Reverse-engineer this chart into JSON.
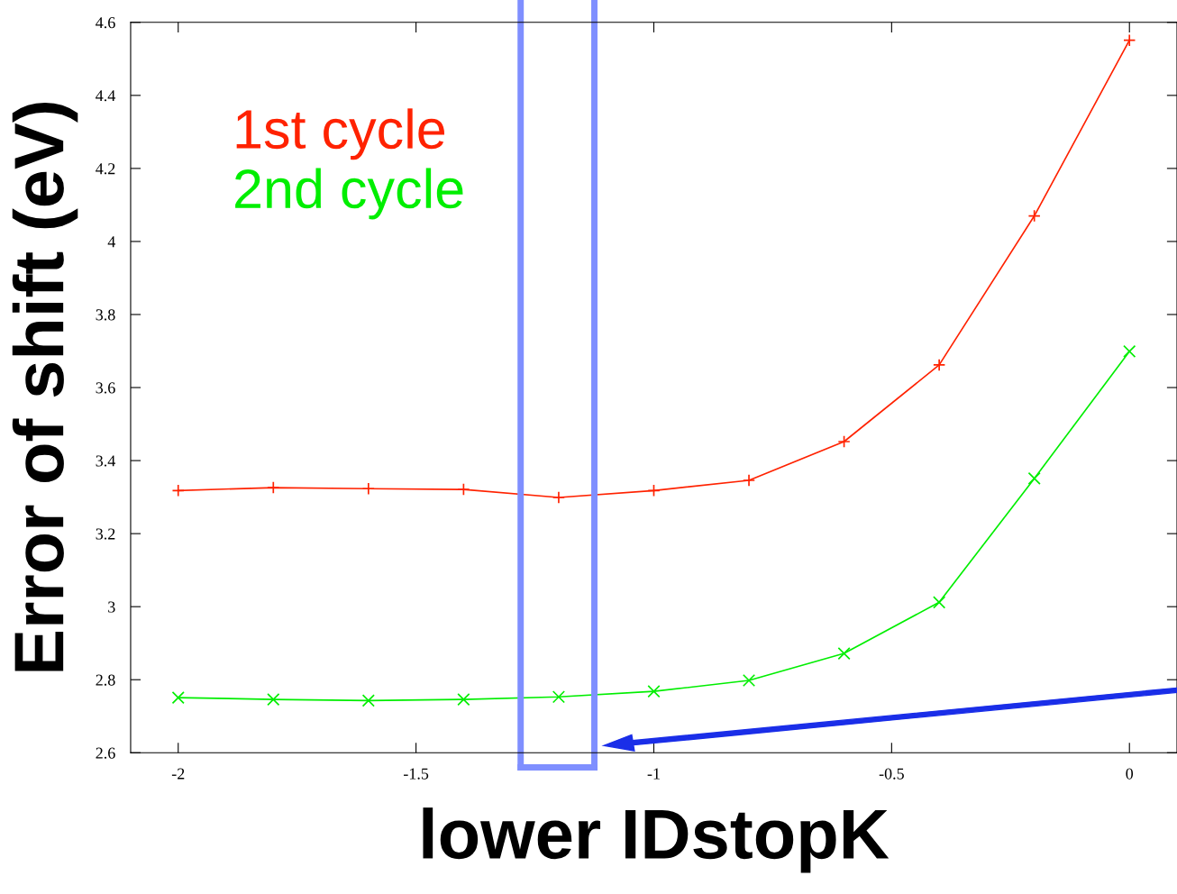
{
  "chart_data": {
    "type": "line",
    "xlabel": "lower IDstopK",
    "ylabel": "Error of shift (eV)",
    "x": [
      -2,
      -1.8,
      -1.6,
      -1.4,
      -1.2,
      -1,
      -0.8,
      -0.6,
      -0.4,
      -0.2,
      0
    ],
    "series": [
      {
        "name": "1st cycle",
        "color": "#ff2200",
        "marker": "plus",
        "values": [
          3.318,
          3.326,
          3.323,
          3.321,
          3.299,
          3.318,
          3.346,
          3.452,
          3.662,
          4.07,
          4.551
        ]
      },
      {
        "name": "2nd cycle",
        "color": "#00ee00",
        "marker": "cross",
        "values": [
          2.751,
          2.746,
          2.743,
          2.746,
          2.753,
          2.768,
          2.798,
          2.872,
          3.012,
          3.351,
          3.699
        ]
      }
    ],
    "xlim": [
      -2.1,
      0.1
    ],
    "ylim": [
      2.6,
      4.6
    ],
    "xticks": [
      -2,
      -1.5,
      -1,
      -0.5,
      0
    ],
    "yticks": [
      2.6,
      2.8,
      3,
      3.2,
      3.4,
      3.6,
      3.8,
      4,
      4.2,
      4.4,
      4.6
    ],
    "ref_lines": [
      {
        "axis": "x",
        "value": -1.28,
        "color": "#7f8fff"
      },
      {
        "axis": "x",
        "value": -1.125,
        "color": "#7f8fff"
      }
    ],
    "grid": false,
    "legend": "top left"
  }
}
